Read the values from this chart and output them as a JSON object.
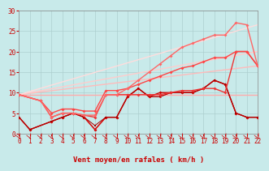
{
  "background_color": "#c8eaea",
  "grid_color": "#aacccc",
  "xlabel": "Vent moyen/en rafales ( km/h )",
  "xlim": [
    0,
    22
  ],
  "ylim": [
    0,
    30
  ],
  "yticks": [
    0,
    5,
    10,
    15,
    20,
    25,
    30
  ],
  "xticks": [
    0,
    1,
    2,
    3,
    4,
    5,
    6,
    7,
    8,
    9,
    10,
    11,
    12,
    13,
    14,
    15,
    16,
    17,
    18,
    19,
    20,
    21,
    22
  ],
  "linear_series": [
    {
      "x": [
        0,
        22
      ],
      "y": [
        9.5,
        9.5
      ],
      "color": "#ffaaaa",
      "lw": 1.0
    },
    {
      "x": [
        0,
        22
      ],
      "y": [
        9.5,
        16.5
      ],
      "color": "#ffbbbb",
      "lw": 1.0
    },
    {
      "x": [
        0,
        22
      ],
      "y": [
        9.5,
        20.0
      ],
      "color": "#ffcccc",
      "lw": 1.0
    },
    {
      "x": [
        0,
        22
      ],
      "y": [
        9.5,
        26.5
      ],
      "color": "#ffdddd",
      "lw": 1.0
    }
  ],
  "data_series": [
    {
      "x": [
        0,
        1,
        3,
        4,
        5,
        6,
        7,
        8,
        9,
        10,
        11,
        12,
        13,
        14,
        15,
        16,
        17,
        18,
        19,
        20,
        21,
        22
      ],
      "y": [
        4,
        1,
        3,
        4,
        5,
        4,
        1,
        4,
        4,
        9,
        11,
        9,
        10,
        10,
        10,
        10,
        11,
        13,
        12,
        5,
        4,
        4
      ],
      "color": "#cc0000",
      "lw": 1.0,
      "marker": "D",
      "ms": 2.0
    },
    {
      "x": [
        0,
        1,
        3,
        4,
        5,
        6,
        7,
        8,
        9,
        10,
        11,
        12,
        13,
        14,
        15,
        16,
        17,
        18,
        19,
        20,
        21,
        22
      ],
      "y": [
        4,
        1,
        3,
        4,
        5,
        4,
        1,
        4,
        4,
        9,
        11,
        9,
        9,
        10,
        10,
        10,
        11,
        13,
        12,
        5,
        4,
        4
      ],
      "color": "#dd1111",
      "lw": 0.8,
      "marker": "^",
      "ms": 2.0
    },
    {
      "x": [
        0,
        1,
        3,
        4,
        5,
        6,
        7,
        8,
        9,
        10,
        11,
        12,
        13,
        14,
        15,
        16,
        17,
        18,
        19,
        20,
        21,
        22
      ],
      "y": [
        4,
        1,
        3,
        4,
        5,
        4,
        2,
        4,
        4,
        9,
        11,
        9,
        9,
        10,
        10,
        10,
        11,
        13,
        12,
        5,
        4,
        4
      ],
      "color": "#aa0000",
      "lw": 0.7,
      "marker": "s",
      "ms": 1.8
    },
    {
      "x": [
        0,
        2,
        3,
        4,
        5,
        6,
        7,
        8,
        9,
        10,
        11,
        12,
        13,
        14,
        15,
        16,
        17,
        18,
        19,
        20,
        21,
        22
      ],
      "y": [
        9.5,
        8,
        4,
        5,
        5,
        4.5,
        4,
        9.5,
        9.5,
        9.5,
        9.5,
        9.5,
        9.5,
        10,
        10.5,
        10.5,
        11,
        11,
        10,
        20,
        20,
        16.5
      ],
      "color": "#ee3333",
      "lw": 1.0,
      "marker": "D",
      "ms": 2.0
    },
    {
      "x": [
        0,
        2,
        3,
        4,
        5,
        6,
        7,
        8,
        9,
        10,
        11,
        12,
        13,
        14,
        15,
        16,
        17,
        18,
        19,
        20,
        21,
        22
      ],
      "y": [
        9.5,
        8,
        5,
        6,
        6,
        5.5,
        5.5,
        10.5,
        10.5,
        11,
        12,
        13,
        14,
        15,
        16,
        16.5,
        17.5,
        18.5,
        18.5,
        20,
        20,
        16.5
      ],
      "color": "#ff4444",
      "lw": 1.0,
      "marker": "D",
      "ms": 2.0
    },
    {
      "x": [
        0,
        2,
        3,
        4,
        5,
        6,
        7,
        8,
        9,
        10,
        11,
        12,
        13,
        14,
        15,
        16,
        17,
        18,
        19,
        20,
        21,
        22
      ],
      "y": [
        9.5,
        8,
        4,
        5,
        5,
        4.5,
        4.5,
        9.5,
        9.5,
        11,
        13,
        15,
        17,
        19,
        21,
        22,
        23,
        24,
        24,
        27,
        26.5,
        16.5
      ],
      "color": "#ff6666",
      "lw": 1.0,
      "marker": "D",
      "ms": 2.0
    }
  ],
  "tick_fontsize": 5.5,
  "label_fontsize": 6.5,
  "text_color": "#cc0000"
}
